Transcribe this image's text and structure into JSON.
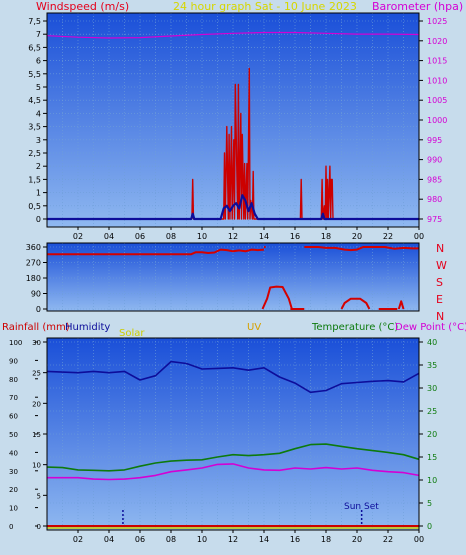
{
  "colors": {
    "bg": "#c7dcec",
    "plot_top": "#1a4fd8",
    "plot_bottom": "#8fb8f0",
    "grid": "#6f9fd8",
    "axis": "#000000",
    "wind_label": "#e4001b",
    "title": "#d6d600",
    "baro": "#d400d4",
    "humidity": "#0d0d9a",
    "solar": "#cccc00",
    "uv": "#d6a000",
    "temp": "#0d7a0d",
    "dew": "#d400d4",
    "rain": "#cc0000",
    "wind_dir": "#d40000",
    "dir_labels": "#e4001b"
  },
  "header": {
    "windspeed": "Windspeed (m/s)",
    "title": "24 hour graph Sat - 10 June 2023",
    "barometer": "Barometer (hpa)"
  },
  "middle": {
    "labels": [
      "N",
      "W",
      "S",
      "E",
      "N"
    ]
  },
  "bottom_header": {
    "rainfall": "Rainfall (mm)",
    "humidity": "Humidity",
    "solar": "Solar",
    "uv": "UV",
    "temperature": "Temperature (°C)",
    "dewpoint": "Dew Point (°C)"
  },
  "annotations": {
    "sunset": "Sun Set"
  },
  "chart_data": [
    {
      "type": "line",
      "name": "wind-barometer",
      "x_ticks": [
        "02",
        "04",
        "06",
        "08",
        "10",
        "12",
        "14",
        "16",
        "18",
        "20",
        "22",
        "00"
      ],
      "y_ticks_left": [
        "0",
        "0,5",
        "1",
        "1,5",
        "2",
        "2,5",
        "3",
        "3,5",
        "4",
        "4,5",
        "5",
        "5,5",
        "6",
        "6,5",
        "7",
        "7,5"
      ],
      "y_ticks_right": [
        "975",
        "980",
        "985",
        "990",
        "995",
        "1000",
        "1005",
        "1010",
        "1015",
        "1020",
        "1025"
      ],
      "ylim_left": [
        0,
        7.5
      ],
      "ylim_right": [
        975,
        1025
      ],
      "xlim": [
        0,
        24
      ],
      "grid": true,
      "series": [
        {
          "role": "gust",
          "x": [
            9.35,
            9.4,
            9.45,
            11.4,
            11.45,
            11.5,
            11.6,
            11.7,
            11.75,
            11.8,
            11.9,
            11.95,
            12.05,
            12.1,
            12.15,
            12.3,
            12.35,
            12.4,
            12.5,
            12.55,
            12.6,
            12.7,
            12.75,
            12.8,
            12.9,
            12.95,
            13.05,
            13.1,
            13.15,
            13.25,
            13.3,
            13.35,
            16.35,
            16.4,
            16.45,
            17.7,
            17.75,
            17.8,
            17.9,
            17.95,
            18.0,
            18.05,
            18.1,
            18.15,
            18.25,
            18.3,
            18.35,
            18.4,
            18.45
          ],
          "values": [
            0,
            1.5,
            0,
            0,
            2.5,
            0,
            3.5,
            0,
            3.2,
            0,
            3.5,
            0,
            3,
            0,
            5.1,
            0,
            5.1,
            0,
            4,
            0,
            3.2,
            0,
            2.1,
            0,
            2.1,
            0,
            5.7,
            0,
            0.7,
            0,
            1.8,
            0,
            0,
            1.5,
            0,
            0,
            1.5,
            0,
            0.5,
            0,
            2,
            0,
            1.5,
            0,
            2,
            0,
            1.5,
            1.5,
            0
          ]
        },
        {
          "role": "wind",
          "x": [
            0,
            9.3,
            9.4,
            9.5,
            11.2,
            11.4,
            11.6,
            11.8,
            12.0,
            12.2,
            12.4,
            12.6,
            12.8,
            13.0,
            13.2,
            13.4,
            13.6,
            17.7,
            17.8,
            17.9,
            24
          ],
          "values": [
            0,
            0,
            0.2,
            0,
            0,
            0.4,
            0.5,
            0.3,
            0.5,
            0.6,
            0.4,
            0.9,
            0.7,
            0.3,
            0.6,
            0.2,
            0,
            0,
            0.2,
            0,
            0
          ]
        },
        {
          "role": "barometer",
          "x": [
            0,
            2,
            4,
            6,
            8,
            10,
            12,
            14,
            16,
            18,
            20,
            22,
            24
          ],
          "values": [
            1021.3,
            1020.9,
            1020.7,
            1020.8,
            1021.2,
            1021.6,
            1021.9,
            1022.1,
            1022.1,
            1021.9,
            1021.7,
            1021.7,
            1021.6
          ]
        }
      ]
    },
    {
      "type": "line",
      "name": "wind-direction",
      "y_ticks": [
        "0",
        "90",
        "180",
        "270",
        "360"
      ],
      "ylim": [
        0,
        360
      ],
      "xlim": [
        0,
        24
      ],
      "grid": true,
      "series": [
        {
          "role": "direction",
          "segments": [
            {
              "x": [
                0,
                2,
                4,
                6,
                8,
                9.3,
                9.6,
                10,
                10.4,
                10.8,
                11.2,
                11.6,
                12,
                12.4,
                12.8,
                13.2,
                13.6,
                14
              ],
              "values": [
                318,
                318,
                318,
                318,
                318,
                318,
                330,
                330,
                325,
                328,
                345,
                342,
                335,
                340,
                335,
                345,
                342,
                345
              ]
            },
            {
              "x": [
                14,
                14.1
              ],
              "values": [
                360,
                360
              ]
            },
            {
              "x": [
                13.9,
                14.2,
                14.4,
                14.8,
                15.2,
                15.6,
                15.8
              ],
              "values": [
                0,
                60,
                125,
                130,
                128,
                60,
                0
              ]
            },
            {
              "x": [
                15.7,
                16.6
              ],
              "values": [
                0,
                0
              ]
            },
            {
              "x": [
                16.6,
                17.5,
                18,
                18.6,
                19.2,
                19.6,
                20,
                20.4,
                21,
                21.8,
                22.4,
                23,
                23.6,
                24
              ],
              "values": [
                360,
                360,
                355,
                355,
                345,
                342,
                345,
                360,
                360,
                360,
                350,
                355,
                352,
                352
              ]
            },
            {
              "x": [
                19.0,
                19.2,
                19.6,
                20.2,
                20.6,
                20.8
              ],
              "values": [
                0,
                35,
                60,
                60,
                35,
                0
              ]
            },
            {
              "x": [
                21.4,
                22.6
              ],
              "values": [
                0,
                0
              ]
            },
            {
              "x": [
                22.7,
                22.85,
                23.0
              ],
              "values": [
                0,
                45,
                0
              ]
            }
          ]
        }
      ]
    },
    {
      "type": "line",
      "name": "humidity-temperature",
      "x_ticks": [
        "02",
        "04",
        "06",
        "08",
        "10",
        "12",
        "14",
        "16",
        "18",
        "20",
        "22",
        "00"
      ],
      "y_ticks_rain": [
        "0",
        "10",
        "20",
        "30",
        "40",
        "50",
        "60",
        "70",
        "80",
        "90",
        "100"
      ],
      "y_ticks_humidity": [
        "0",
        "5",
        "10",
        "15",
        "20",
        "25",
        "30"
      ],
      "y_ticks_temp": [
        "0",
        "5",
        "10",
        "15",
        "20",
        "25",
        "30",
        "35",
        "40"
      ],
      "ylim_rain": [
        0,
        100
      ],
      "ylim_humidity": [
        0,
        30
      ],
      "ylim_temp": [
        0,
        40
      ],
      "xlim": [
        0,
        24
      ],
      "grid": true,
      "series": [
        {
          "role": "humidity",
          "x": [
            0,
            1,
            2,
            3,
            4,
            5,
            6,
            7,
            8,
            9,
            10,
            11,
            12,
            13,
            14,
            15,
            16,
            17,
            18,
            19,
            20,
            21,
            22,
            23,
            24
          ],
          "values": [
            25.2,
            25.1,
            25.0,
            25.2,
            25.0,
            25.2,
            23.8,
            24.5,
            26.8,
            26.5,
            25.6,
            25.7,
            25.8,
            25.4,
            25.8,
            24.3,
            23.3,
            21.8,
            22.1,
            23.2,
            23.4,
            23.6,
            23.7,
            23.5,
            24.9
          ]
        },
        {
          "role": "temperature",
          "x": [
            0,
            1,
            2,
            3,
            4,
            5,
            6,
            7,
            8,
            9,
            10,
            11,
            12,
            13,
            14,
            15,
            16,
            17,
            18,
            19,
            20,
            21,
            22,
            23,
            24
          ],
          "values": [
            12.8,
            12.7,
            12.2,
            12.1,
            12.0,
            12.2,
            13.0,
            13.7,
            14.1,
            14.3,
            14.4,
            15.0,
            15.5,
            15.3,
            15.5,
            15.8,
            16.8,
            17.7,
            17.8,
            17.3,
            16.8,
            16.4,
            16.0,
            15.5,
            14.5
          ]
        },
        {
          "role": "dewpoint",
          "x": [
            0,
            1,
            2,
            3,
            4,
            5,
            6,
            7,
            8,
            9,
            10,
            11,
            12,
            13,
            14,
            15,
            16,
            17,
            18,
            19,
            20,
            21,
            22,
            23,
            24
          ],
          "values": [
            10.5,
            10.5,
            10.5,
            10.2,
            10.1,
            10.2,
            10.5,
            11.0,
            11.8,
            12.2,
            12.6,
            13.4,
            13.5,
            12.6,
            12.2,
            12.1,
            12.6,
            12.4,
            12.7,
            12.4,
            12.6,
            12.1,
            11.8,
            11.6,
            11.0
          ]
        },
        {
          "role": "rainfall",
          "x": [
            0,
            24
          ],
          "values": [
            0,
            0
          ]
        }
      ],
      "markers": [
        {
          "role": "sunrise",
          "x": 4.9
        },
        {
          "role": "sunset",
          "x": 20.3
        }
      ]
    }
  ]
}
